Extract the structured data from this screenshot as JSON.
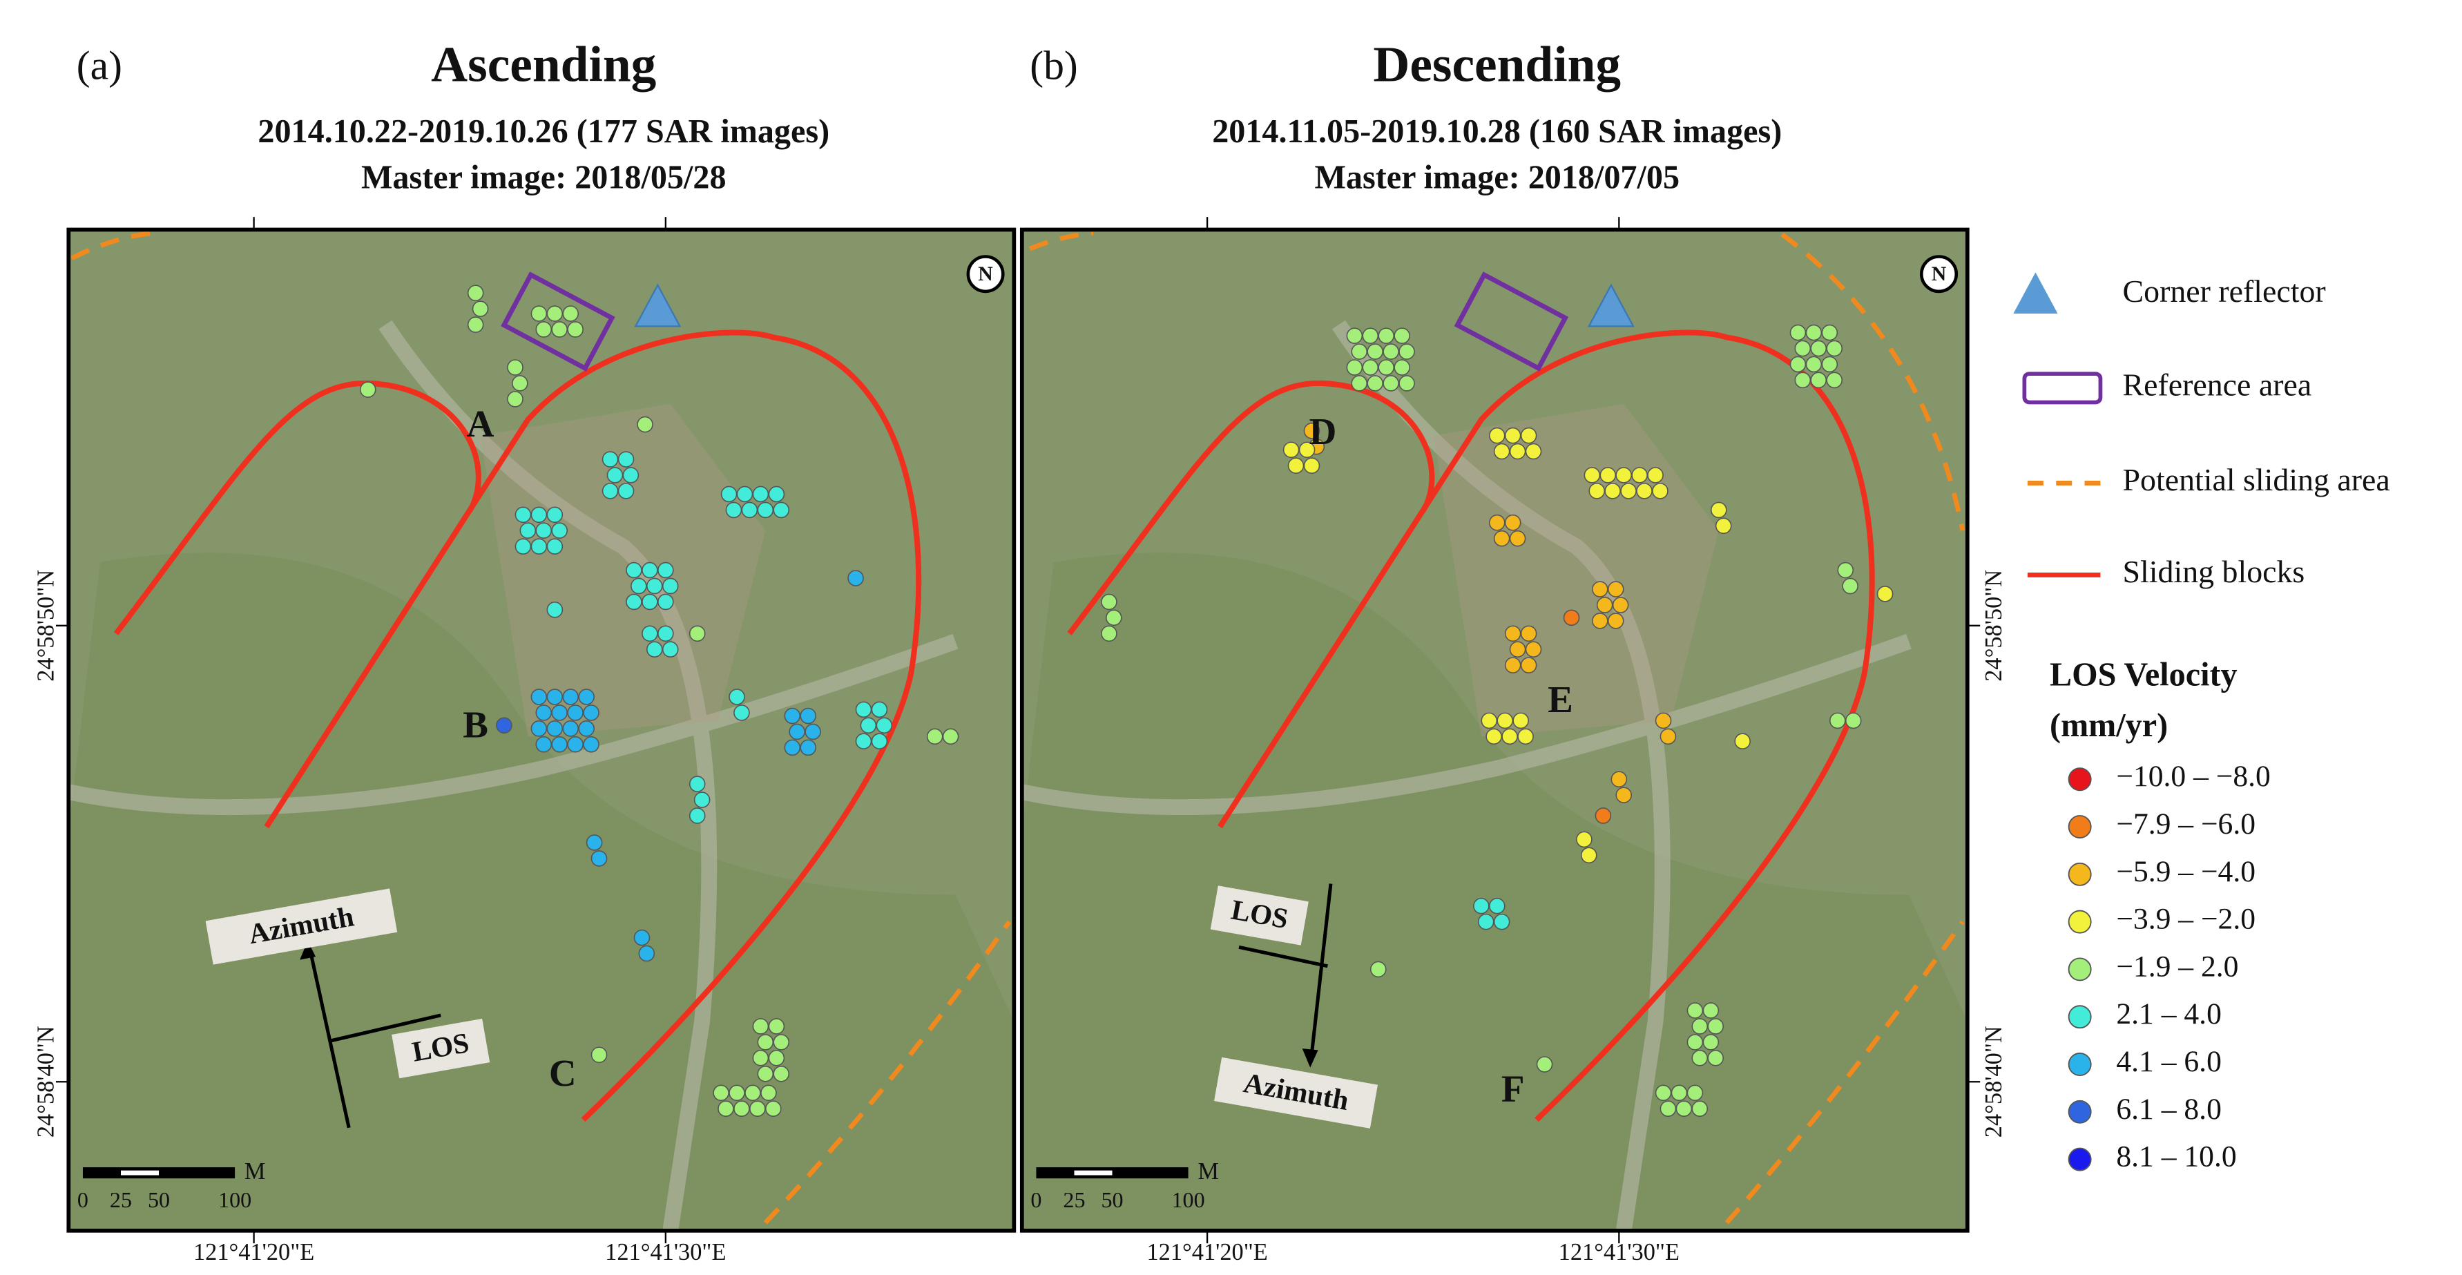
{
  "panels": [
    {
      "label": "(a)",
      "title": "Ascending",
      "subtitle": "2014.10.22-2019.10.26 (177 SAR images)",
      "master": "Master image: 2018/05/28",
      "site_labels": [
        "A",
        "B",
        "C"
      ],
      "azimuth": "Azimuth",
      "los": "LOS",
      "north": "N",
      "scale": {
        "unit": "M",
        "ticks": [
          0,
          25,
          50,
          100
        ]
      },
      "lat_labels": [
        "24°58'50\"N",
        "24°58'40\"N"
      ],
      "lon_labels": [
        "121°41'20\"E",
        "121°41'30\"E"
      ]
    },
    {
      "label": "(b)",
      "title": "Descending",
      "subtitle": "2014.11.05-2019.10.28 (160 SAR images)",
      "master": "Master image: 2018/07/05",
      "site_labels": [
        "D",
        "E",
        "F"
      ],
      "azimuth": "Azimuth",
      "los": "LOS",
      "north": "N",
      "scale": {
        "unit": "M",
        "ticks": [
          0,
          25,
          50,
          100
        ]
      },
      "lat_labels": [
        "24°58'50\"N",
        "24°58'40\"N"
      ],
      "lon_labels": [
        "121°41'20\"E",
        "121°41'30\"E"
      ]
    }
  ],
  "legend": {
    "items": [
      "Corner reflector",
      "Reference area",
      "Potential sliding area",
      "Sliding blocks"
    ],
    "velocity_title": [
      "LOS Velocity",
      "(mm/yr)"
    ],
    "classes": [
      {
        "label": "−10.0 – −8.0",
        "color": "#e8141b"
      },
      {
        "label": "−7.9 – −6.0",
        "color": "#f07d1a"
      },
      {
        "label": "−5.9 – −4.0",
        "color": "#f5b81c"
      },
      {
        "label": "−3.9 – −2.0",
        "color": "#f2f23c"
      },
      {
        "label": "−1.9 – 2.0",
        "color": "#a4ee7a"
      },
      {
        "label": "2.1 – 4.0",
        "color": "#42ecd8"
      },
      {
        "label": "4.1 – 6.0",
        "color": "#2ab3ea"
      },
      {
        "label": "6.1 – 8.0",
        "color": "#2f66e0"
      },
      {
        "label": "8.1 – 10.0",
        "color": "#1a1aee"
      }
    ]
  }
}
